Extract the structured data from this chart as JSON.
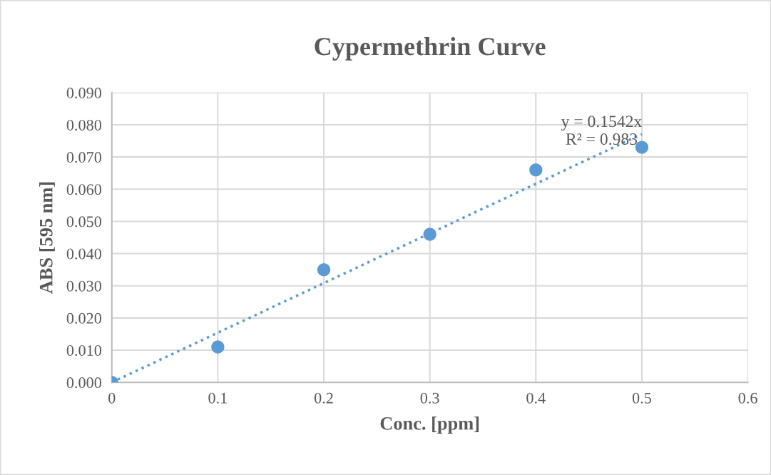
{
  "chart_data": {
    "type": "scatter",
    "title": "Cypermethrin Curve",
    "xlabel": "Conc. [ppm]",
    "ylabel": "ABS [595 nm]",
    "x": [
      0,
      0.1,
      0.2,
      0.3,
      0.4,
      0.5
    ],
    "series": [
      {
        "color": "#5b9bd5",
        "marker": "circle",
        "values": [
          0,
          0.011,
          0.035,
          0.046,
          0.066,
          0.073
        ]
      },
      {
        "type": "line",
        "color": "#5b9bd5",
        "marker": "none",
        "line_style": "dotted",
        "x": [
          0,
          0.5
        ],
        "values": [
          0,
          0.0771
        ]
      }
    ],
    "annotations": [
      "y = 0.1542x\nR² = 0.983"
    ],
    "xlim": [
      0,
      0.6
    ],
    "xticks": [
      0,
      0.1,
      0.2,
      0.3,
      0.4,
      0.5,
      0.6
    ],
    "ylim": [
      0,
      0.09
    ],
    "yticks": [
      {
        "value": 0,
        "label": "0.000"
      },
      {
        "value": 0.01,
        "label": "0.010"
      },
      {
        "value": 0.02,
        "label": "0.020"
      },
      {
        "value": 0.03,
        "label": "0.030"
      },
      {
        "value": 0.04,
        "label": "0.040"
      },
      {
        "value": 0.05,
        "label": "0.050"
      },
      {
        "value": 0.06,
        "label": "0.060"
      },
      {
        "value": 0.07,
        "label": "0.070"
      },
      {
        "value": 0.08,
        "label": "0.080"
      },
      {
        "value": 0.09,
        "label": "0.090"
      }
    ],
    "grid": true,
    "legend": false
  }
}
